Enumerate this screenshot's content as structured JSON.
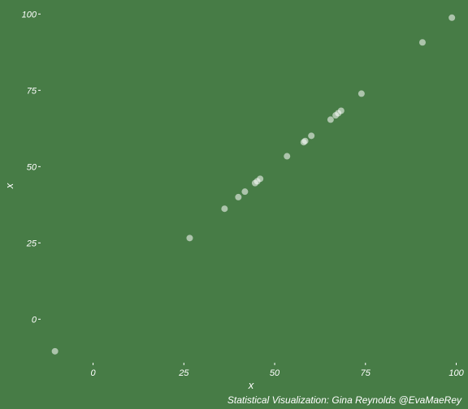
{
  "chart_data": {
    "type": "scatter",
    "title": "",
    "xlabel": "x",
    "ylabel": "x",
    "xlim": [
      -14,
      101
    ],
    "ylim": [
      -14,
      103
    ],
    "x_ticks": [
      0,
      25,
      50,
      75,
      100
    ],
    "y_ticks": [
      0,
      25,
      50,
      75,
      100
    ],
    "x_tick_labels": [
      "0",
      "25",
      "50",
      "75",
      "100"
    ],
    "y_tick_labels": [
      "0",
      "25",
      "50",
      "75",
      "100"
    ],
    "grid": false,
    "point_color": "#ffffff",
    "background_color": "#477c46",
    "points": [
      {
        "x": -10.5,
        "y": -10.5
      },
      {
        "x": 26.6,
        "y": 26.6
      },
      {
        "x": 36.2,
        "y": 36.2
      },
      {
        "x": 40.0,
        "y": 40.0
      },
      {
        "x": 41.8,
        "y": 41.8
      },
      {
        "x": 44.6,
        "y": 44.6
      },
      {
        "x": 45.2,
        "y": 45.2
      },
      {
        "x": 46.0,
        "y": 46.0
      },
      {
        "x": 53.4,
        "y": 53.4
      },
      {
        "x": 58.0,
        "y": 58.0
      },
      {
        "x": 58.4,
        "y": 58.4
      },
      {
        "x": 60.1,
        "y": 60.1
      },
      {
        "x": 65.4,
        "y": 65.4
      },
      {
        "x": 66.8,
        "y": 66.8
      },
      {
        "x": 67.5,
        "y": 67.5
      },
      {
        "x": 68.3,
        "y": 68.3
      },
      {
        "x": 73.9,
        "y": 73.9
      },
      {
        "x": 90.7,
        "y": 90.7
      },
      {
        "x": 98.8,
        "y": 98.8
      }
    ]
  },
  "caption": "Statistical Visualization: Gina Reynolds @EvaMaeRey"
}
